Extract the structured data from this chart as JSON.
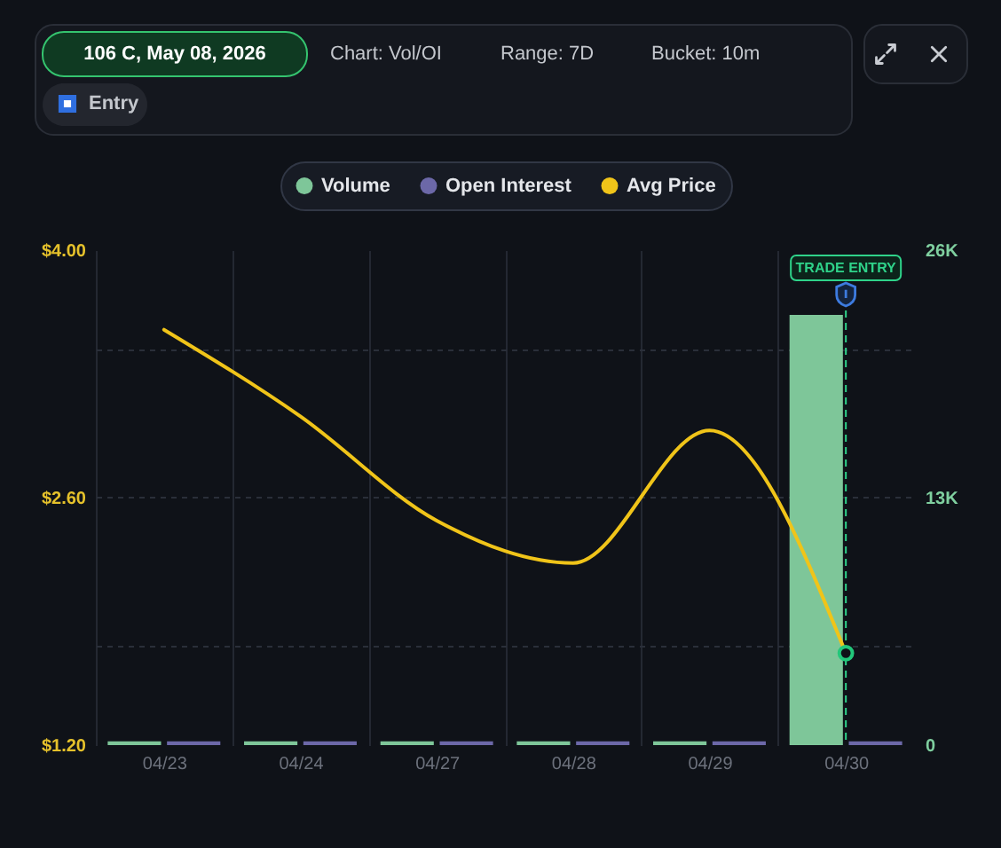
{
  "chart_data": {
    "type": "bar",
    "title": "106 C, May 08, 2026",
    "annotations": [
      "Chart: Vol/OI",
      "Range: 7D",
      "Bucket: 10m",
      "Entry"
    ],
    "categories": [
      "04/23",
      "04/24",
      "04/27",
      "04/28",
      "04/29",
      "04/30"
    ],
    "series": [
      {
        "name": "Volume",
        "axis": "y2",
        "color": "#7ec699",
        "values": [
          200,
          200,
          200,
          200,
          200,
          22600
        ]
      },
      {
        "name": "Open Interest",
        "axis": "y2",
        "color": "#6c68a8",
        "values": [
          200,
          200,
          200,
          200,
          200,
          200
        ]
      },
      {
        "name": "Avg Price",
        "type": "line",
        "color": "#f0c419",
        "line_style": "solid",
        "values": [
          3.55,
          3.06,
          2.47,
          2.23,
          2.98,
          1.72
        ]
      },
      {
        "type": "scatter",
        "color": "#22c77a",
        "marker": "circle",
        "values": [
          null,
          null,
          null,
          null,
          null,
          1.72
        ]
      }
    ],
    "ylim": [
      1.2,
      4.0
    ],
    "yticks": [
      {
        "value": 1.2,
        "label": "$1.20"
      },
      {
        "value": 1.76,
        "label": null
      },
      {
        "value": 2.6,
        "label": "$2.60"
      },
      {
        "value": 3.44,
        "label": null
      },
      {
        "value": 4.0,
        "label": "$4.00"
      }
    ],
    "y2lim": [
      0,
      26000
    ],
    "y2ticks": [
      0,
      {
        "value": 13000,
        "label": "13K"
      },
      {
        "value": 26000,
        "label": "26K"
      }
    ],
    "ref_lines": [
      {
        "axis": "x",
        "value": "04/30",
        "label": "TRADE ENTRY",
        "color": "#2fd38a",
        "line_style": "dashed"
      }
    ],
    "grid": true,
    "legend": "top"
  }
}
